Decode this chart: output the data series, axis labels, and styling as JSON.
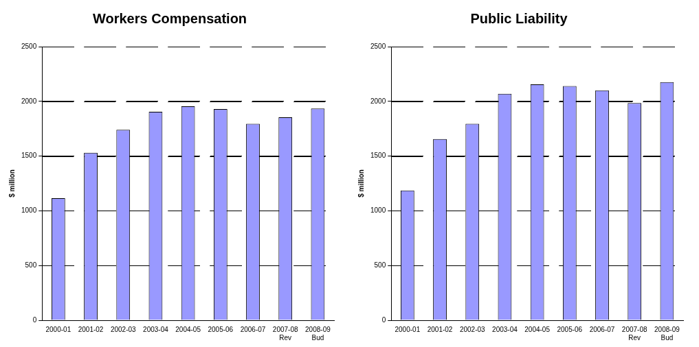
{
  "chart_data": [
    {
      "type": "bar",
      "title": "Workers Compensation",
      "ylabel": "$ million",
      "categories": [
        "2000-01",
        "2001-02",
        "2002-03",
        "2003-04",
        "2004-05",
        "2005-06",
        "2006-07",
        "2007-08\nRev",
        "2008-09\nBud"
      ],
      "values": [
        1115,
        1530,
        1740,
        1905,
        1955,
        1930,
        1795,
        1855,
        1935
      ],
      "color": "#9999ff",
      "ylim": [
        0,
        2500
      ],
      "yticks": [
        0,
        500,
        1000,
        1500,
        2000,
        2500
      ],
      "grid": "y",
      "line_style": "dashed"
    },
    {
      "type": "bar",
      "title": "Public Liability",
      "ylabel": "$ million",
      "categories": [
        "2000-01",
        "2001-02",
        "2002-03",
        "2003-04",
        "2004-05",
        "2005-06",
        "2006-07",
        "2007-08\nRev",
        "2008-09\nBud"
      ],
      "values": [
        1185,
        1655,
        1795,
        2070,
        2155,
        2140,
        2100,
        1985,
        2175
      ],
      "color": "#9999ff",
      "ylim": [
        0,
        2500
      ],
      "yticks": [
        0,
        500,
        1000,
        1500,
        2000,
        2500
      ],
      "grid": "y",
      "line_style": "dashed"
    }
  ]
}
